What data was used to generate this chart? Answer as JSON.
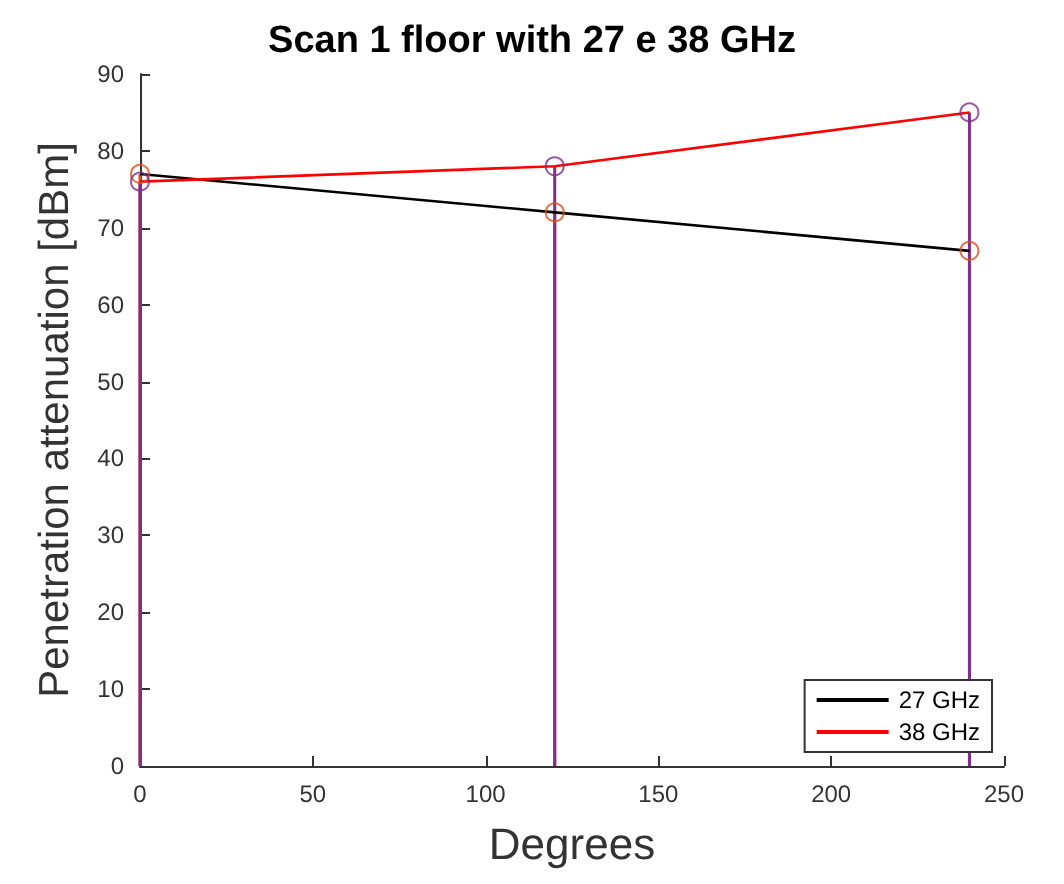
{
  "chart_data": {
    "type": "line",
    "title": "Scan 1 floor with 27 e 38 GHz",
    "xlabel": "Degrees",
    "ylabel": "Penetration attenuation [dBm]",
    "x": [
      0,
      120,
      240
    ],
    "series": [
      {
        "name": "27 GHz",
        "color": "#000000",
        "values": [
          77,
          72,
          67
        ],
        "marker": "none"
      },
      {
        "name": "38 GHz",
        "color": "#ff0000",
        "values": [
          76,
          78,
          85
        ],
        "marker": "none"
      },
      {
        "type": "lollipop",
        "color": "#d95319",
        "values": [
          77,
          72,
          67
        ],
        "marker": "circle"
      },
      {
        "type": "lollipop",
        "color": "#7e2f8e",
        "values": [
          76,
          78,
          85
        ],
        "marker": "circle"
      }
    ],
    "xlim": [
      0,
      250
    ],
    "xticks": [
      0,
      50,
      100,
      150,
      200,
      250
    ],
    "ylim": [
      0,
      90
    ],
    "yticks": [
      0,
      10,
      20,
      30,
      40,
      50,
      60,
      70,
      80,
      90
    ],
    "grid": false,
    "legend": "bottom right"
  }
}
